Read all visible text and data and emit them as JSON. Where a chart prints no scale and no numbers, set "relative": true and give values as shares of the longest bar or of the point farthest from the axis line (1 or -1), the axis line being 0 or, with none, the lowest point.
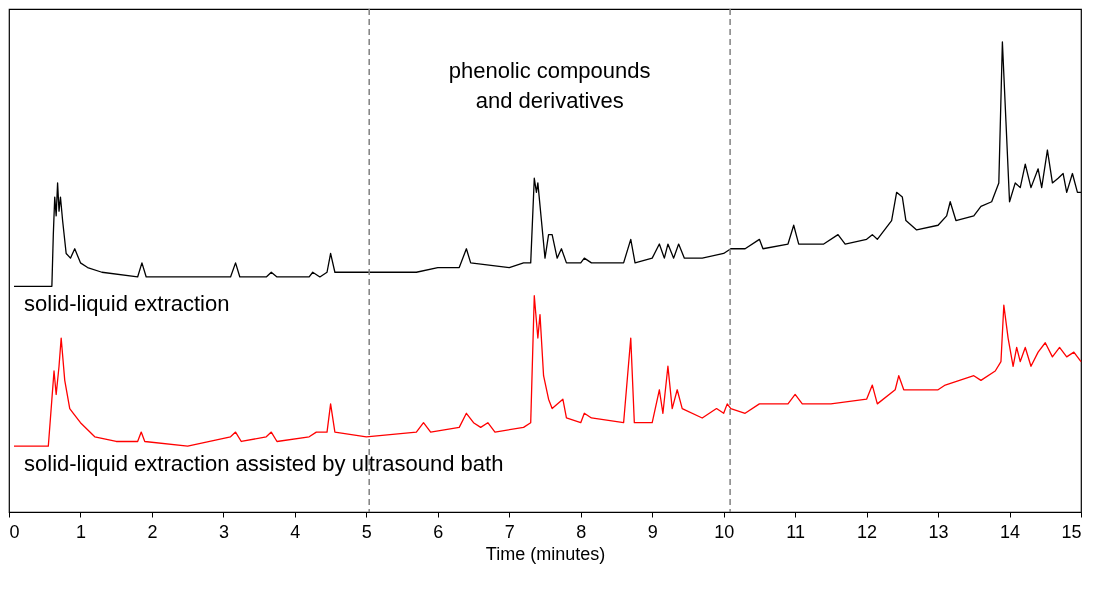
{
  "chart_data": {
    "type": "line",
    "relative": true,
    "xlabel": "Time (minutes)",
    "xlim": [
      0,
      15
    ],
    "xticks": [
      0,
      1,
      2,
      3,
      4,
      5,
      6,
      7,
      8,
      9,
      10,
      11,
      12,
      13,
      14,
      15
    ],
    "grid": false,
    "legend": false,
    "marker": "none",
    "line_style": "solid",
    "annotations": [
      "phenolic compounds\nand derivatives"
    ],
    "ref_lines": [
      {
        "axis": "x",
        "value": 5.04,
        "color": "#808080",
        "line_style": "dashed"
      },
      {
        "axis": "x",
        "value": 10.09,
        "color": "#808080",
        "line_style": "dashed"
      }
    ],
    "series": [
      {
        "name": "solid-liquid extraction",
        "color": "#000000",
        "x": [
          0.07,
          0.6,
          0.62,
          0.64,
          0.66,
          0.68,
          0.7,
          0.72,
          0.75,
          0.8,
          0.86,
          0.92,
          1.0,
          1.1,
          1.3,
          1.8,
          1.86,
          1.92,
          2.5,
          3.1,
          3.17,
          3.23,
          3.6,
          3.67,
          3.75,
          4.2,
          4.25,
          4.35,
          4.45,
          4.5,
          4.56,
          5.0,
          5.5,
          5.7,
          6.0,
          6.3,
          6.4,
          6.46,
          7.0,
          7.2,
          7.3,
          7.35,
          7.38,
          7.4,
          7.45,
          7.5,
          7.55,
          7.6,
          7.67,
          7.73,
          7.8,
          8.0,
          8.05,
          8.15,
          8.6,
          8.7,
          8.76,
          9.0,
          9.1,
          9.17,
          9.22,
          9.3,
          9.37,
          9.45,
          9.7,
          10.0,
          10.1,
          10.3,
          10.5,
          10.55,
          10.9,
          10.98,
          11.05,
          11.4,
          11.6,
          11.7,
          12.0,
          12.08,
          12.15,
          12.35,
          12.42,
          12.5,
          12.55,
          12.7,
          13.0,
          13.12,
          13.17,
          13.25,
          13.5,
          13.6,
          13.75,
          13.85,
          13.9,
          13.95,
          14.0,
          14.08,
          14.15,
          14.22,
          14.3,
          14.4,
          14.45,
          14.53,
          14.6,
          14.68,
          14.75,
          14.8,
          14.88,
          14.95,
          15.0
        ],
        "values": [
          0.48,
          0.48,
          0.59,
          0.67,
          0.63,
          0.7,
          0.64,
          0.67,
          0.62,
          0.55,
          0.54,
          0.56,
          0.53,
          0.52,
          0.51,
          0.5,
          0.53,
          0.5,
          0.5,
          0.5,
          0.53,
          0.5,
          0.5,
          0.51,
          0.5,
          0.5,
          0.51,
          0.5,
          0.51,
          0.55,
          0.51,
          0.51,
          0.51,
          0.51,
          0.52,
          0.52,
          0.56,
          0.53,
          0.52,
          0.53,
          0.53,
          0.71,
          0.68,
          0.7,
          0.62,
          0.54,
          0.59,
          0.59,
          0.54,
          0.56,
          0.53,
          0.53,
          0.54,
          0.53,
          0.53,
          0.58,
          0.53,
          0.54,
          0.57,
          0.54,
          0.57,
          0.54,
          0.57,
          0.54,
          0.54,
          0.55,
          0.56,
          0.56,
          0.58,
          0.56,
          0.57,
          0.61,
          0.57,
          0.57,
          0.59,
          0.57,
          0.58,
          0.59,
          0.58,
          0.62,
          0.68,
          0.67,
          0.62,
          0.6,
          0.61,
          0.63,
          0.66,
          0.62,
          0.63,
          0.65,
          0.66,
          0.7,
          1,
          0.83,
          0.66,
          0.7,
          0.69,
          0.74,
          0.69,
          0.73,
          0.69,
          0.77,
          0.7,
          0.71,
          0.72,
          0.68,
          0.72,
          0.68,
          0.68
        ]
      },
      {
        "name": "solid-liquid extraction assisted by ultrasound bath",
        "color": "#ff0000",
        "x": [
          0.07,
          0.55,
          0.6,
          0.63,
          0.66,
          0.7,
          0.73,
          0.78,
          0.85,
          0.9,
          1.0,
          1.2,
          1.5,
          1.8,
          1.85,
          1.9,
          2.5,
          3.1,
          3.17,
          3.25,
          3.6,
          3.67,
          3.75,
          4.2,
          4.3,
          4.45,
          4.5,
          4.56,
          5.0,
          5.7,
          5.8,
          5.9,
          6.3,
          6.4,
          6.5,
          6.6,
          6.7,
          6.8,
          7.2,
          7.3,
          7.35,
          7.4,
          7.43,
          7.48,
          7.55,
          7.6,
          7.75,
          7.8,
          8.0,
          8.05,
          8.15,
          8.6,
          8.7,
          8.75,
          9.0,
          9.1,
          9.15,
          9.22,
          9.28,
          9.35,
          9.42,
          9.7,
          9.9,
          10.0,
          10.05,
          10.1,
          10.3,
          10.5,
          10.9,
          11.0,
          11.1,
          11.5,
          12.0,
          12.08,
          12.15,
          12.4,
          12.45,
          12.52,
          13.0,
          13.1,
          13.5,
          13.6,
          13.8,
          13.88,
          13.92,
          13.98,
          14.05,
          14.1,
          14.15,
          14.22,
          14.3,
          14.4,
          14.5,
          14.6,
          14.7,
          14.8,
          14.9,
          15.0
        ],
        "values": [
          0.14,
          0.14,
          0.24,
          0.3,
          0.25,
          0.31,
          0.37,
          0.28,
          0.22,
          0.21,
          0.19,
          0.16,
          0.15,
          0.15,
          0.17,
          0.15,
          0.14,
          0.16,
          0.17,
          0.15,
          0.16,
          0.17,
          0.15,
          0.16,
          0.17,
          0.17,
          0.23,
          0.17,
          0.16,
          0.17,
          0.19,
          0.17,
          0.18,
          0.21,
          0.19,
          0.18,
          0.19,
          0.17,
          0.18,
          0.19,
          0.46,
          0.37,
          0.42,
          0.29,
          0.24,
          0.22,
          0.24,
          0.2,
          0.19,
          0.21,
          0.2,
          0.19,
          0.37,
          0.19,
          0.19,
          0.26,
          0.21,
          0.31,
          0.22,
          0.26,
          0.22,
          0.2,
          0.22,
          0.21,
          0.23,
          0.22,
          0.21,
          0.23,
          0.23,
          0.25,
          0.23,
          0.23,
          0.24,
          0.27,
          0.23,
          0.26,
          0.29,
          0.26,
          0.26,
          0.27,
          0.29,
          0.28,
          0.3,
          0.32,
          0.44,
          0.37,
          0.31,
          0.35,
          0.32,
          0.35,
          0.31,
          0.34,
          0.36,
          0.33,
          0.35,
          0.33,
          0.34,
          0.32
        ]
      }
    ]
  }
}
